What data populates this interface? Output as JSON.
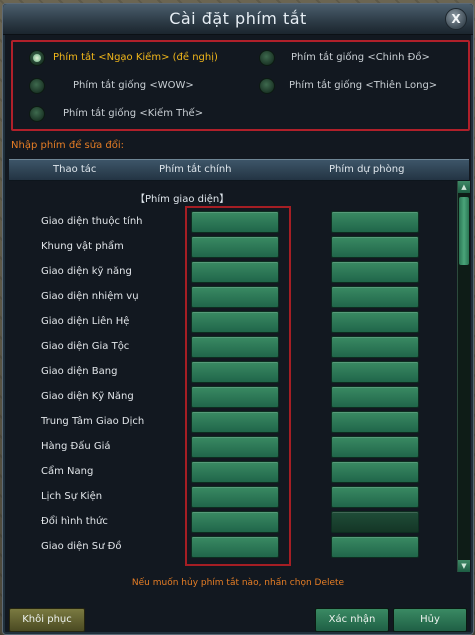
{
  "window": {
    "title": "Cài đặt phím tắt",
    "close_label": "X"
  },
  "presets": [
    {
      "label": "Phím tắt <Ngạo Kiếm> (đề nghị)",
      "selected": true
    },
    {
      "label": "Phím tắt giống <Chinh Đồ>",
      "selected": false
    },
    {
      "label": "Phím tắt giống <WOW>",
      "selected": false
    },
    {
      "label": "Phím tắt giống <Thiên Long>",
      "selected": false
    },
    {
      "label": "Phím tắt giống <Kiếm Thế>",
      "selected": false
    }
  ],
  "hint_top": "Nhập phím để sửa đổi:",
  "table": {
    "headers": [
      "Thao tác",
      "Phím tắt chính",
      "Phím dự phòng"
    ],
    "section": "【Phím giao diện】",
    "rows": [
      {
        "label": "Giao diện thuộc tính"
      },
      {
        "label": "Khung vật phẩm"
      },
      {
        "label": "Giao diện kỹ năng"
      },
      {
        "label": "Giao diện nhiệm vụ"
      },
      {
        "label": "Giao diện Liên Hệ"
      },
      {
        "label": "Giao diện Gia Tộc"
      },
      {
        "label": "Giao diện Bang"
      },
      {
        "label": "Giao diện Kỹ Năng"
      },
      {
        "label": "Trung Tâm Giao Dịch"
      },
      {
        "label": "Hàng Đấu Giá"
      },
      {
        "label": "Cẩm Nang"
      },
      {
        "label": "Lịch Sự Kiện"
      },
      {
        "label": "Đổi hình thức"
      },
      {
        "label": "Giao diện Sư Đồ"
      }
    ]
  },
  "scroll": {
    "up": "▲",
    "down": "▼"
  },
  "hint_bottom": "Nếu muốn hủy phím tắt nào, nhấn chọn Delete",
  "buttons": {
    "reset": "Khôi phục",
    "confirm": "Xác nhận",
    "cancel": "Hủy"
  },
  "colors": {
    "accent_orange": "#e57d25",
    "selected_text": "#f0b61a",
    "highlight_red": "#b0202a",
    "key_green": "#2e7a56"
  }
}
